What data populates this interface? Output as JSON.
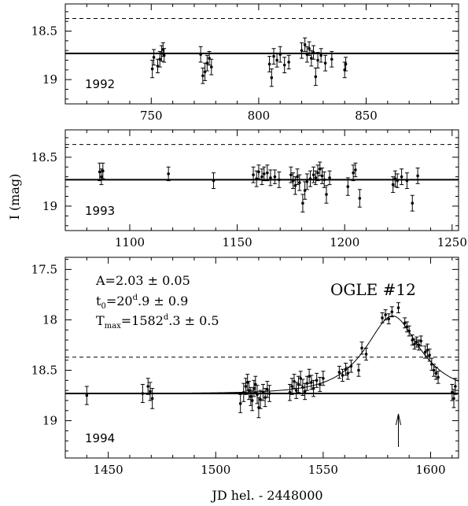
{
  "chart_data": [
    {
      "type": "scatter",
      "panel_label": "1992",
      "xlim": [
        710,
        893
      ],
      "ylim": [
        19.25,
        18.22
      ],
      "y_inverted": true,
      "xticks": [
        750,
        800,
        850
      ],
      "xtick_labels": [
        "750",
        "800",
        "850"
      ],
      "yticks": [
        18.5,
        19
      ],
      "ytick_labels": [
        "18.5",
        "19"
      ],
      "baseline_mag": 18.73,
      "dashed_mag": 18.37,
      "points": [
        {
          "x": 750.5,
          "y": 18.89,
          "err": 0.09
        },
        {
          "x": 751.2,
          "y": 18.77,
          "err": 0.08
        },
        {
          "x": 753.0,
          "y": 18.86,
          "err": 0.07
        },
        {
          "x": 754.0,
          "y": 18.79,
          "err": 0.08
        },
        {
          "x": 754.8,
          "y": 18.73,
          "err": 0.08
        },
        {
          "x": 755.5,
          "y": 18.69,
          "err": 0.07
        },
        {
          "x": 756.0,
          "y": 18.75,
          "err": 0.07
        },
        {
          "x": 773.0,
          "y": 18.74,
          "err": 0.08
        },
        {
          "x": 774.0,
          "y": 18.96,
          "err": 0.08
        },
        {
          "x": 775.0,
          "y": 18.92,
          "err": 0.09
        },
        {
          "x": 776.0,
          "y": 18.83,
          "err": 0.08
        },
        {
          "x": 777.0,
          "y": 18.78,
          "err": 0.07
        },
        {
          "x": 778.0,
          "y": 18.87,
          "err": 0.08
        },
        {
          "x": 805.0,
          "y": 18.84,
          "err": 0.08
        },
        {
          "x": 806.0,
          "y": 18.98,
          "err": 0.09
        },
        {
          "x": 807.0,
          "y": 18.76,
          "err": 0.08
        },
        {
          "x": 808.5,
          "y": 18.8,
          "err": 0.07
        },
        {
          "x": 810.0,
          "y": 18.74,
          "err": 0.08
        },
        {
          "x": 812.0,
          "y": 18.85,
          "err": 0.08
        },
        {
          "x": 814.0,
          "y": 18.82,
          "err": 0.07
        },
        {
          "x": 820.0,
          "y": 18.7,
          "err": 0.08
        },
        {
          "x": 821.5,
          "y": 18.64,
          "err": 0.07
        },
        {
          "x": 822.5,
          "y": 18.74,
          "err": 0.08
        },
        {
          "x": 823.5,
          "y": 18.68,
          "err": 0.07
        },
        {
          "x": 824.5,
          "y": 18.78,
          "err": 0.08
        },
        {
          "x": 825.5,
          "y": 18.72,
          "err": 0.07
        },
        {
          "x": 826.5,
          "y": 18.97,
          "err": 0.09
        },
        {
          "x": 827.5,
          "y": 18.8,
          "err": 0.08
        },
        {
          "x": 829.0,
          "y": 18.75,
          "err": 0.07
        },
        {
          "x": 831.0,
          "y": 18.83,
          "err": 0.08
        },
        {
          "x": 834.0,
          "y": 18.79,
          "err": 0.08
        },
        {
          "x": 840.0,
          "y": 18.9,
          "err": 0.08
        },
        {
          "x": 840.5,
          "y": 18.84,
          "err": 0.07
        }
      ]
    },
    {
      "type": "scatter",
      "panel_label": "1993",
      "xlim": [
        1070,
        1253
      ],
      "ylim": [
        19.25,
        18.22
      ],
      "y_inverted": true,
      "xticks": [
        1100,
        1150,
        1200,
        1250
      ],
      "xtick_labels": [
        "1100",
        "1150",
        "1200",
        "1250"
      ],
      "yticks": [
        18.5,
        19
      ],
      "ytick_labels": [
        "18.5",
        "19"
      ],
      "baseline_mag": 18.73,
      "dashed_mag": 18.37,
      "points": [
        {
          "x": 1086.0,
          "y": 18.65,
          "err": 0.09
        },
        {
          "x": 1086.8,
          "y": 18.7,
          "err": 0.08
        },
        {
          "x": 1087.5,
          "y": 18.64,
          "err": 0.08
        },
        {
          "x": 1118.0,
          "y": 18.67,
          "err": 0.07
        },
        {
          "x": 1139.0,
          "y": 18.74,
          "err": 0.08
        },
        {
          "x": 1157.5,
          "y": 18.68,
          "err": 0.08
        },
        {
          "x": 1159.0,
          "y": 18.72,
          "err": 0.08
        },
        {
          "x": 1160.0,
          "y": 18.65,
          "err": 0.07
        },
        {
          "x": 1161.5,
          "y": 18.7,
          "err": 0.08
        },
        {
          "x": 1162.5,
          "y": 18.67,
          "err": 0.07
        },
        {
          "x": 1164.0,
          "y": 18.66,
          "err": 0.08
        },
        {
          "x": 1165.5,
          "y": 18.71,
          "err": 0.08
        },
        {
          "x": 1167.5,
          "y": 18.7,
          "err": 0.07
        },
        {
          "x": 1169.5,
          "y": 18.73,
          "err": 0.08
        },
        {
          "x": 1175.0,
          "y": 18.68,
          "err": 0.08
        },
        {
          "x": 1176.0,
          "y": 18.74,
          "err": 0.08
        },
        {
          "x": 1177.0,
          "y": 18.79,
          "err": 0.09
        },
        {
          "x": 1178.0,
          "y": 18.7,
          "err": 0.08
        },
        {
          "x": 1179.0,
          "y": 18.76,
          "err": 0.08
        },
        {
          "x": 1180.5,
          "y": 18.97,
          "err": 0.09
        },
        {
          "x": 1181.5,
          "y": 18.84,
          "err": 0.09
        },
        {
          "x": 1182.5,
          "y": 18.75,
          "err": 0.08
        },
        {
          "x": 1184.0,
          "y": 18.72,
          "err": 0.08
        },
        {
          "x": 1185.5,
          "y": 18.68,
          "err": 0.08
        },
        {
          "x": 1186.5,
          "y": 18.71,
          "err": 0.07
        },
        {
          "x": 1187.5,
          "y": 18.66,
          "err": 0.08
        },
        {
          "x": 1188.5,
          "y": 18.62,
          "err": 0.07
        },
        {
          "x": 1189.5,
          "y": 18.69,
          "err": 0.08
        },
        {
          "x": 1190.5,
          "y": 18.73,
          "err": 0.08
        },
        {
          "x": 1191.5,
          "y": 18.88,
          "err": 0.09
        },
        {
          "x": 1193.0,
          "y": 18.71,
          "err": 0.07
        },
        {
          "x": 1201.5,
          "y": 18.8,
          "err": 0.09
        },
        {
          "x": 1204.0,
          "y": 18.66,
          "err": 0.08
        },
        {
          "x": 1205.0,
          "y": 18.63,
          "err": 0.07
        },
        {
          "x": 1207.0,
          "y": 18.92,
          "err": 0.09
        },
        {
          "x": 1222.5,
          "y": 18.78,
          "err": 0.08
        },
        {
          "x": 1223.5,
          "y": 18.72,
          "err": 0.08
        },
        {
          "x": 1224.5,
          "y": 18.74,
          "err": 0.07
        },
        {
          "x": 1226.5,
          "y": 18.7,
          "err": 0.08
        },
        {
          "x": 1229.0,
          "y": 18.74,
          "err": 0.08
        },
        {
          "x": 1231.5,
          "y": 18.97,
          "err": 0.08
        },
        {
          "x": 1234.0,
          "y": 18.69,
          "err": 0.08
        }
      ]
    },
    {
      "type": "scatter",
      "panel_label": "1994",
      "xlim": [
        1430,
        1613
      ],
      "ylim": [
        19.37,
        17.38
      ],
      "y_inverted": true,
      "xticks": [
        1450,
        1500,
        1550,
        1600
      ],
      "xtick_labels": [
        "1450",
        "1500",
        "1550",
        "1600"
      ],
      "yticks": [
        17.5,
        18,
        18.5,
        19
      ],
      "ytick_labels": [
        "17.5",
        "18",
        "18.5",
        "19"
      ],
      "baseline_mag": 18.73,
      "dashed_mag": 18.37,
      "annotations": {
        "line1": "A=2.03 ± 0.05",
        "line2_main": "t",
        "line2_sub": "0",
        "line2_rest": "=20",
        "line2_sup": "d",
        "line2_tail": ".9 ± 0.9",
        "line3_main": "T",
        "line3_sub": "max",
        "line3_rest": "=1582",
        "line3_sup": "d",
        "line3_tail": ".3 ± 0.5",
        "event_name": "OGLE #12"
      },
      "model": {
        "t_max": 1582.3,
        "t0": 20.9,
        "amplification": 2.03
      },
      "arrow_x": 1585,
      "points": [
        {
          "x": 1440.0,
          "y": 18.75,
          "err": 0.09
        },
        {
          "x": 1466.0,
          "y": 18.73,
          "err": 0.09
        },
        {
          "x": 1468.5,
          "y": 18.66,
          "err": 0.08
        },
        {
          "x": 1469.5,
          "y": 18.71,
          "err": 0.09
        },
        {
          "x": 1470.5,
          "y": 18.78,
          "err": 0.1
        },
        {
          "x": 1511.5,
          "y": 18.83,
          "err": 0.09
        },
        {
          "x": 1513.0,
          "y": 18.72,
          "err": 0.09
        },
        {
          "x": 1514.0,
          "y": 18.66,
          "err": 0.08
        },
        {
          "x": 1514.8,
          "y": 18.62,
          "err": 0.08
        },
        {
          "x": 1515.5,
          "y": 18.7,
          "err": 0.09
        },
        {
          "x": 1516.3,
          "y": 18.76,
          "err": 0.09
        },
        {
          "x": 1517.0,
          "y": 18.8,
          "err": 0.1
        },
        {
          "x": 1517.8,
          "y": 18.68,
          "err": 0.08
        },
        {
          "x": 1518.5,
          "y": 18.64,
          "err": 0.08
        },
        {
          "x": 1519.3,
          "y": 18.74,
          "err": 0.09
        },
        {
          "x": 1520.0,
          "y": 18.87,
          "err": 0.1
        },
        {
          "x": 1520.8,
          "y": 18.79,
          "err": 0.09
        },
        {
          "x": 1522.0,
          "y": 18.72,
          "err": 0.08
        },
        {
          "x": 1523.0,
          "y": 18.77,
          "err": 0.09
        },
        {
          "x": 1524.0,
          "y": 18.69,
          "err": 0.08
        },
        {
          "x": 1525.0,
          "y": 18.73,
          "err": 0.08
        },
        {
          "x": 1534.5,
          "y": 18.72,
          "err": 0.08
        },
        {
          "x": 1535.5,
          "y": 18.66,
          "err": 0.08
        },
        {
          "x": 1536.5,
          "y": 18.61,
          "err": 0.07
        },
        {
          "x": 1537.5,
          "y": 18.7,
          "err": 0.08
        },
        {
          "x": 1538.5,
          "y": 18.64,
          "err": 0.08
        },
        {
          "x": 1539.5,
          "y": 18.58,
          "err": 0.07
        },
        {
          "x": 1540.5,
          "y": 18.67,
          "err": 0.08
        },
        {
          "x": 1541.5,
          "y": 18.71,
          "err": 0.08
        },
        {
          "x": 1542.5,
          "y": 18.63,
          "err": 0.07
        },
        {
          "x": 1543.5,
          "y": 18.56,
          "err": 0.07
        },
        {
          "x": 1544.5,
          "y": 18.62,
          "err": 0.07
        },
        {
          "x": 1545.5,
          "y": 18.68,
          "err": 0.08
        },
        {
          "x": 1547.0,
          "y": 18.6,
          "err": 0.07
        },
        {
          "x": 1548.5,
          "y": 18.64,
          "err": 0.07
        },
        {
          "x": 1550.0,
          "y": 18.58,
          "err": 0.07
        },
        {
          "x": 1557.5,
          "y": 18.52,
          "err": 0.06
        },
        {
          "x": 1559.0,
          "y": 18.55,
          "err": 0.06
        },
        {
          "x": 1560.5,
          "y": 18.49,
          "err": 0.06
        },
        {
          "x": 1561.5,
          "y": 18.53,
          "err": 0.06
        },
        {
          "x": 1563.0,
          "y": 18.46,
          "err": 0.06
        },
        {
          "x": 1566.5,
          "y": 18.5,
          "err": 0.06
        },
        {
          "x": 1568.0,
          "y": 18.28,
          "err": 0.06
        },
        {
          "x": 1570.0,
          "y": 18.34,
          "err": 0.06
        },
        {
          "x": 1577.5,
          "y": 17.98,
          "err": 0.05
        },
        {
          "x": 1579.0,
          "y": 17.95,
          "err": 0.05
        },
        {
          "x": 1580.5,
          "y": 17.99,
          "err": 0.05
        },
        {
          "x": 1582.0,
          "y": 17.92,
          "err": 0.05
        },
        {
          "x": 1585.0,
          "y": 17.88,
          "err": 0.05
        },
        {
          "x": 1588.0,
          "y": 18.03,
          "err": 0.05
        },
        {
          "x": 1589.0,
          "y": 18.07,
          "err": 0.05
        },
        {
          "x": 1590.0,
          "y": 18.11,
          "err": 0.05
        },
        {
          "x": 1591.5,
          "y": 18.2,
          "err": 0.05
        },
        {
          "x": 1592.5,
          "y": 18.24,
          "err": 0.05
        },
        {
          "x": 1593.5,
          "y": 18.22,
          "err": 0.05
        },
        {
          "x": 1594.5,
          "y": 18.25,
          "err": 0.05
        },
        {
          "x": 1595.5,
          "y": 18.21,
          "err": 0.05
        },
        {
          "x": 1597.5,
          "y": 18.32,
          "err": 0.06
        },
        {
          "x": 1598.5,
          "y": 18.3,
          "err": 0.06
        },
        {
          "x": 1599.5,
          "y": 18.35,
          "err": 0.06
        },
        {
          "x": 1600.5,
          "y": 18.44,
          "err": 0.06
        },
        {
          "x": 1601.5,
          "y": 18.5,
          "err": 0.06
        },
        {
          "x": 1602.5,
          "y": 18.53,
          "err": 0.06
        },
        {
          "x": 1603.5,
          "y": 18.57,
          "err": 0.06
        },
        {
          "x": 1610.0,
          "y": 18.72,
          "err": 0.08
        },
        {
          "x": 1610.8,
          "y": 18.78,
          "err": 0.09
        },
        {
          "x": 1611.5,
          "y": 18.66,
          "err": 0.08
        }
      ]
    }
  ],
  "axis_labels": {
    "y": "I (mag)",
    "x": "JD hel. - 2448000"
  }
}
